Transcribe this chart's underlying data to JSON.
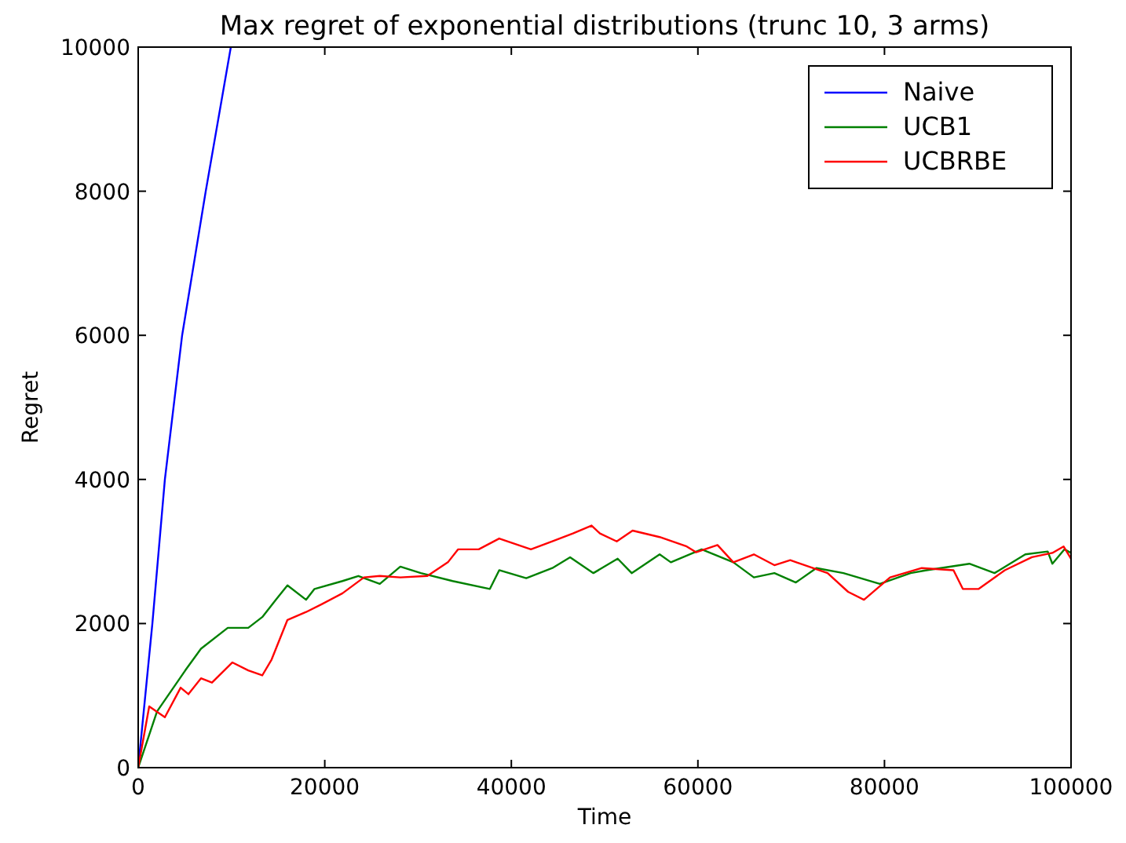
{
  "chart_data": {
    "type": "line",
    "title": "Max regret of exponential distributions (trunc 10, 3 arms)",
    "xlabel": "Time",
    "ylabel": "Regret",
    "xlim": [
      0,
      100000
    ],
    "ylim": [
      0,
      10000
    ],
    "xticks": [
      0,
      20000,
      40000,
      60000,
      80000,
      100000
    ],
    "yticks": [
      0,
      2000,
      4000,
      6000,
      8000,
      10000
    ],
    "grid": false,
    "legend": "top right",
    "line_style": "solid",
    "marker": "none",
    "series": [
      {
        "name": "Naive",
        "color": "#0000ff",
        "x": [
          0,
          1520,
          2860,
          4710,
          7240,
          9930
        ],
        "values": [
          0,
          2000,
          4000,
          6000,
          8000,
          10000
        ]
      },
      {
        "name": "UCB1",
        "color": "#008000",
        "x": [
          0,
          2020,
          5050,
          6730,
          9600,
          11800,
          13300,
          15000,
          16000,
          18000,
          18900,
          21900,
          23600,
          25900,
          28100,
          30300,
          33700,
          37700,
          38700,
          41600,
          44400,
          46300,
          48800,
          51400,
          52900,
          55900,
          57100,
          60400,
          63800,
          66000,
          68200,
          70500,
          72700,
          75600,
          79500,
          82800,
          84500,
          89100,
          91800,
          95100,
          97500,
          98000,
          99300,
          100000
        ],
        "values": [
          0,
          780,
          1350,
          1650,
          1940,
          1940,
          2090,
          2370,
          2530,
          2330,
          2480,
          2590,
          2660,
          2550,
          2790,
          2700,
          2590,
          2480,
          2740,
          2630,
          2770,
          2920,
          2700,
          2900,
          2700,
          2960,
          2850,
          3030,
          2850,
          2640,
          2700,
          2570,
          2770,
          2700,
          2550,
          2700,
          2740,
          2830,
          2700,
          2960,
          3000,
          2830,
          3030,
          2980
        ]
      },
      {
        "name": "UCBRBE",
        "color": "#ff0000",
        "x": [
          0,
          1180,
          2860,
          4550,
          5390,
          6730,
          7910,
          10100,
          11800,
          13300,
          14300,
          16000,
          18000,
          19700,
          21900,
          24200,
          25900,
          28100,
          31000,
          33200,
          34300,
          36500,
          38700,
          42100,
          44400,
          46600,
          48600,
          49500,
          51300,
          53000,
          55900,
          58800,
          59800,
          62100,
          63800,
          66000,
          68200,
          69900,
          73900,
          76100,
          77800,
          80600,
          84000,
          87400,
          88400,
          90100,
          92900,
          95800,
          98000,
          99200,
          100000
        ],
        "values": [
          0,
          850,
          700,
          1110,
          1020,
          1240,
          1180,
          1460,
          1350,
          1280,
          1500,
          2050,
          2160,
          2270,
          2420,
          2640,
          2660,
          2640,
          2660,
          2850,
          3030,
          3030,
          3180,
          3030,
          3140,
          3250,
          3360,
          3250,
          3140,
          3290,
          3200,
          3070,
          2990,
          3090,
          2850,
          2960,
          2810,
          2880,
          2700,
          2440,
          2330,
          2640,
          2770,
          2740,
          2480,
          2480,
          2740,
          2920,
          2980,
          3070,
          2900
        ]
      }
    ]
  }
}
